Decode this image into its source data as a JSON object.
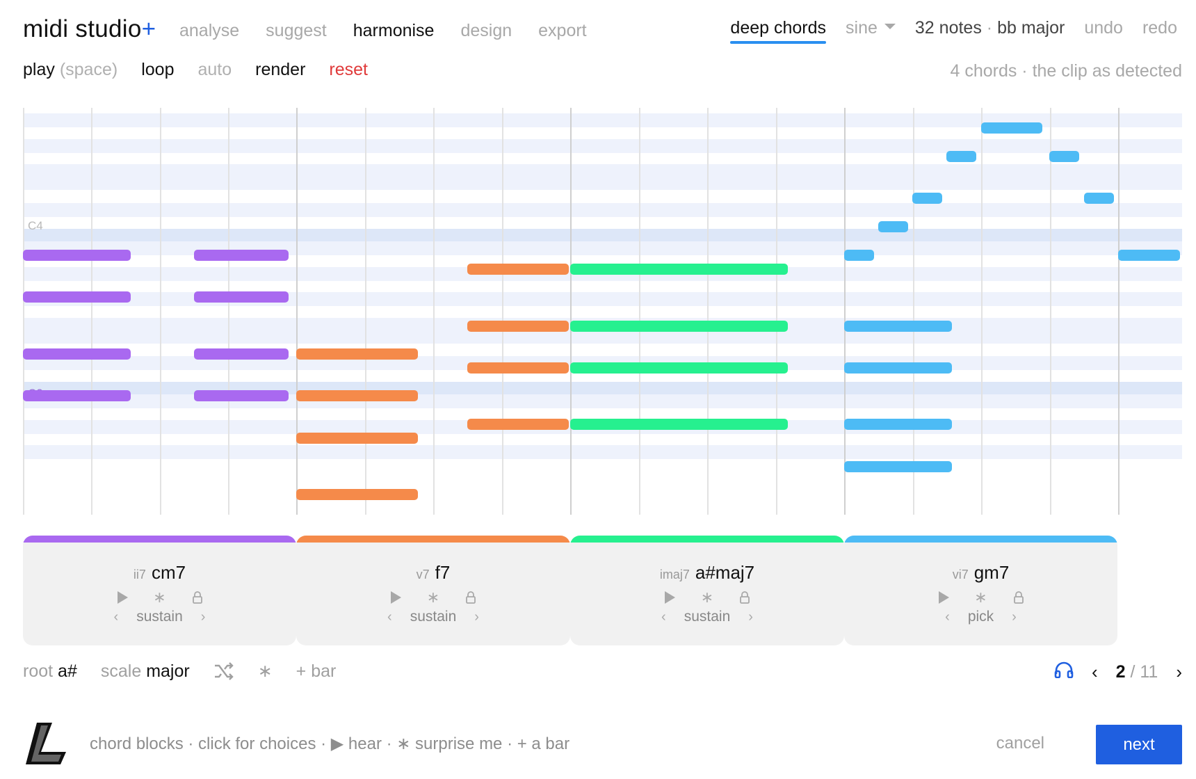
{
  "app": {
    "title": "midi studio",
    "title_plus": "+"
  },
  "nav": [
    "analyse",
    "suggest",
    "harmonise",
    "design",
    "export"
  ],
  "header_right": {
    "mode_tab": "deep chords",
    "sound": "sine",
    "notes_count": "32 notes",
    "separator": "·",
    "key": "bb major",
    "undo": "undo",
    "redo": "redo"
  },
  "toolbar": {
    "play": "play",
    "play_hint": "(space)",
    "loop": "loop",
    "auto": "auto",
    "render": "render",
    "reset": "reset",
    "status": "4 chords · the clip as detected"
  },
  "roll": {
    "pitch_label_c4": "C4",
    "pitch_label_c3": "C3"
  },
  "chords": [
    {
      "roman": "ii7",
      "name": "cm7",
      "voicing": "sustain",
      "color": "#a969f0"
    },
    {
      "roman": "v7",
      "name": "f7",
      "voicing": "sustain",
      "color": "#f58a4a"
    },
    {
      "roman": "imaj7",
      "name": "a#maj7",
      "voicing": "sustain",
      "color": "#26f08f"
    },
    {
      "roman": "vi7",
      "name": "gm7",
      "voicing": "pick",
      "color": "#4dbbf5"
    }
  ],
  "controls": {
    "root_label": "root",
    "root_value": "a#",
    "scale_label": "scale",
    "scale_value": "major",
    "add_bar": "+ bar"
  },
  "pager": {
    "current": "2",
    "slash": "/",
    "total": "11"
  },
  "footer": {
    "hint": "chord blocks · click for choices · ▶ hear · ∗ surprise me · + a bar",
    "cancel": "cancel",
    "next": "next"
  },
  "colors": {
    "accent": "#1f5fe0",
    "tab_underline": "#2a8ff0",
    "reset": "#e03a3a"
  }
}
